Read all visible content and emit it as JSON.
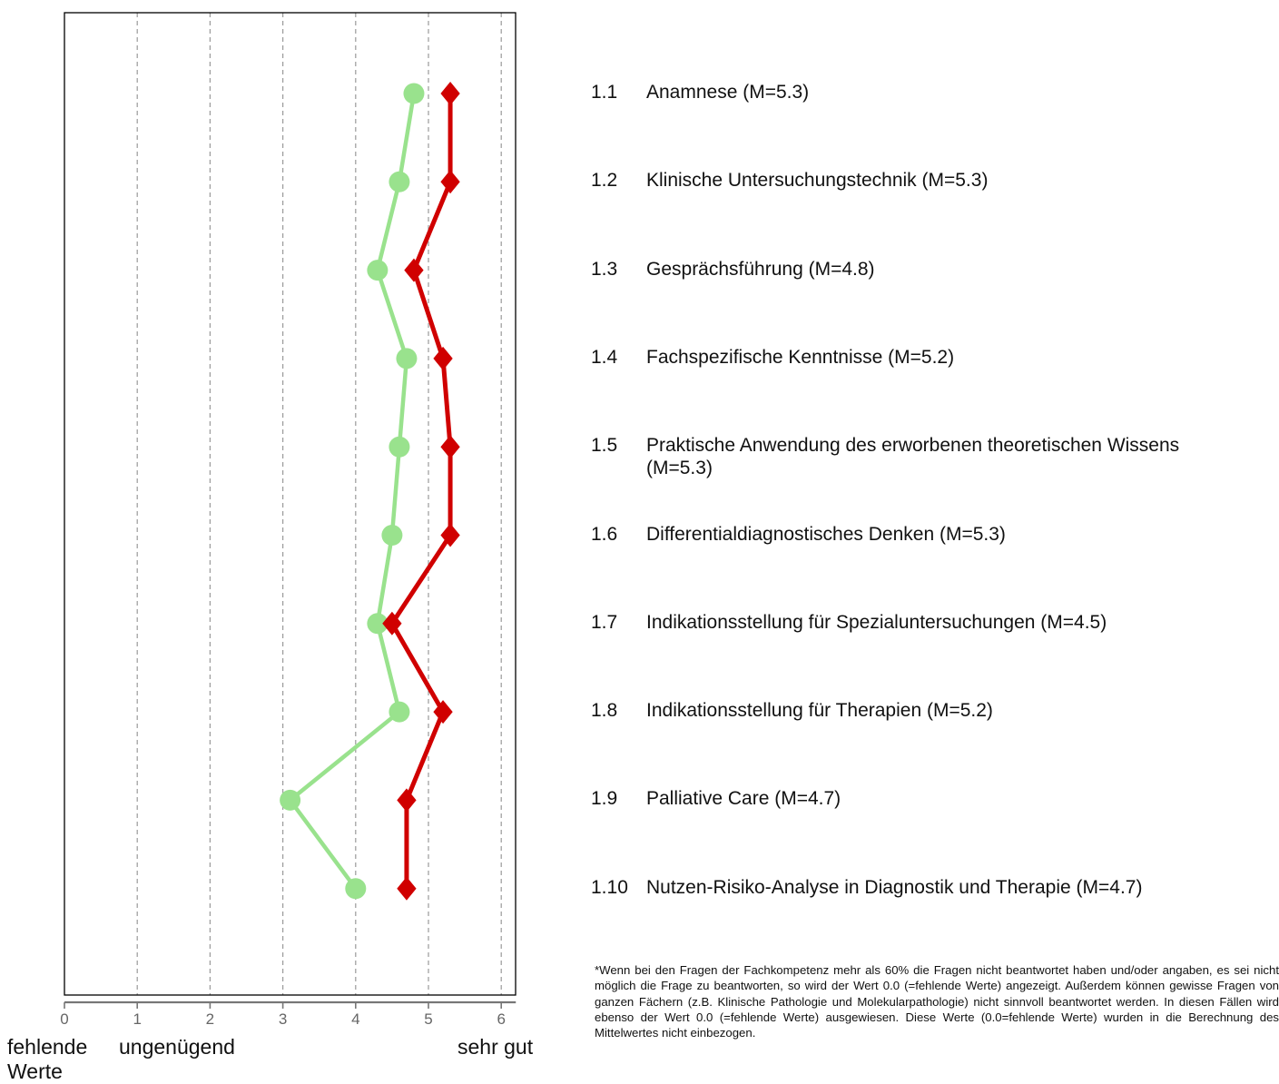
{
  "chart_data": {
    "type": "line",
    "x_ticks": [
      0,
      1,
      2,
      3,
      4,
      5,
      6
    ],
    "xlim": [
      0,
      6.2
    ],
    "grid": "vertical dashed",
    "series": [
      {
        "marker": "circle",
        "color": "#99e28d",
        "values": [
          4.8,
          4.6,
          4.3,
          4.7,
          4.6,
          4.5,
          4.3,
          4.6,
          3.1,
          4.0
        ]
      },
      {
        "marker": "diamond",
        "color": "#d00000",
        "values": [
          5.3,
          5.3,
          4.8,
          5.2,
          5.3,
          5.3,
          4.5,
          5.2,
          4.7,
          4.7
        ]
      }
    ],
    "items": [
      {
        "num": "1.1",
        "label": "Anamnese (M=5.3)"
      },
      {
        "num": "1.2",
        "label": "Klinische Untersuchungstechnik (M=5.3)"
      },
      {
        "num": "1.3",
        "label": "Gesprächsführung (M=4.8)"
      },
      {
        "num": "1.4",
        "label": "Fachspezifische Kenntnisse (M=5.2)"
      },
      {
        "num": "1.5",
        "label": "Praktische Anwendung des erworbenen theoretischen Wissens (M=5.3)"
      },
      {
        "num": "1.6",
        "label": "Differentialdiagnostisches Denken (M=5.3)"
      },
      {
        "num": "1.7",
        "label": "Indikationsstellung für Spezialuntersuchungen (M=4.5)"
      },
      {
        "num": "1.8",
        "label": "Indikationsstellung für Therapien (M=5.2)"
      },
      {
        "num": "1.9",
        "label": "Palliative Care (M=4.7)"
      },
      {
        "num": "1.10",
        "label": "Nutzen-Risiko-Analyse in Diagnostik und Therapie (M=4.7)"
      }
    ]
  },
  "scale_labels": {
    "missing": "fehlende Werte",
    "insufficient": "ungenügend",
    "very_good": "sehr gut"
  },
  "footnote": "*Wenn bei den Fragen der Fachkompetenz mehr als 60% die Fragen nicht beantwortet haben und/oder angaben, es sei nicht möglich die Frage zu beantworten, so wird der Wert 0.0 (=fehlende Werte) angezeigt. Außerdem können gewisse Fragen von ganzen Fächern (z.B. Klinische Pathologie und Molekularpathologie) nicht sinnvoll beantwortet werden. In diesen Fällen wird ebenso der Wert 0.0 (=fehlende Werte) ausgewiesen. Diese Werte (0.0=fehlende Werte) wurden in die Berechnung des Mittelwertes nicht einbezogen."
}
